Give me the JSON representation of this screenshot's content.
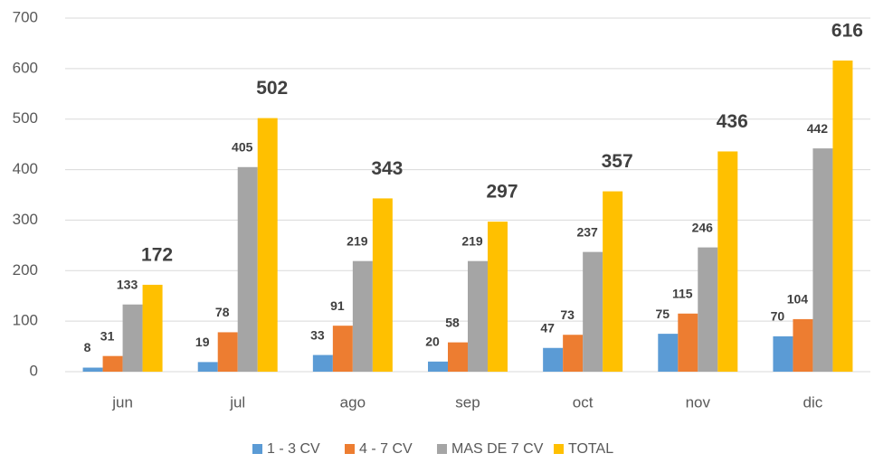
{
  "chart_data": {
    "type": "bar",
    "categories": [
      "jun",
      "jul",
      "ago",
      "sep",
      "oct",
      "nov",
      "dic"
    ],
    "series": [
      {
        "name": "1 - 3 CV",
        "color": "#5b9bd5",
        "values": [
          8,
          19,
          33,
          20,
          47,
          75,
          70
        ]
      },
      {
        "name": "4 - 7 CV",
        "color": "#ed7d31",
        "values": [
          31,
          78,
          91,
          58,
          73,
          115,
          104
        ]
      },
      {
        "name": "MAS DE 7 CV",
        "color": "#a5a5a5",
        "values": [
          133,
          405,
          219,
          219,
          237,
          246,
          442
        ]
      },
      {
        "name": "TOTAL",
        "color": "#ffc000",
        "values": [
          172,
          502,
          343,
          297,
          357,
          436,
          616
        ]
      }
    ],
    "ylim": [
      0,
      700
    ],
    "yticks": [
      0,
      100,
      200,
      300,
      400,
      500,
      600,
      700
    ],
    "grid": true,
    "legend": "bottom"
  }
}
